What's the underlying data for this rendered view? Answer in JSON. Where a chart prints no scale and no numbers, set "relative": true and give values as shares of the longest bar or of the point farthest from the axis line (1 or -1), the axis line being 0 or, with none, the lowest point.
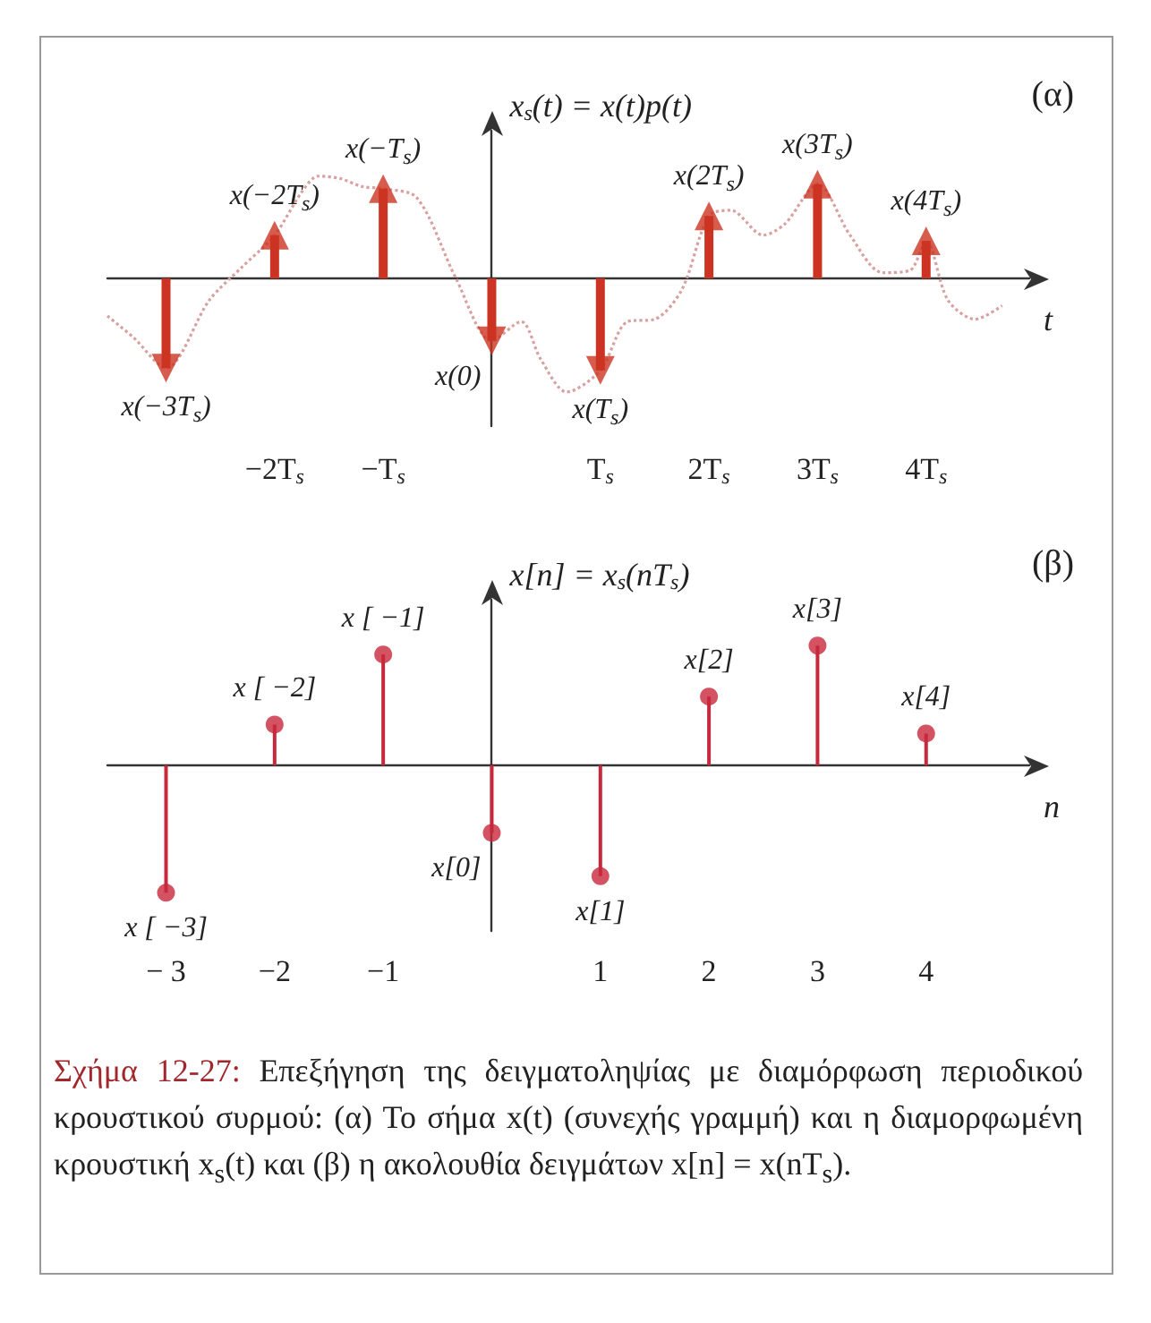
{
  "chart_data": [
    {
      "type": "lollipop",
      "title": "(α)",
      "ylabel": "x$_{s}$(t) = x(t)p(t)",
      "xlabel": "t",
      "relative": true,
      "xlim": [
        -3.54,
        4.95
      ],
      "xticks": [
        {
          "value": -2,
          "label": "−2T$_{s}$"
        },
        {
          "value": -1,
          "label": "−T$_{s}$"
        },
        {
          "value": 1,
          "label": "T$_{s}$"
        },
        {
          "value": 2,
          "label": "2T$_{s}$"
        },
        {
          "value": 3,
          "label": "3T$_{s}$"
        },
        {
          "value": 4,
          "label": "4T$_{s}$"
        }
      ],
      "series": [
        {
          "marker": "triangle",
          "color": "#cc3322",
          "x": [
            -3,
            -2,
            -1,
            0,
            1,
            2,
            3,
            4
          ],
          "values": [
            -0.79,
            0.38,
            0.79,
            -0.55,
            -0.81,
            0.55,
            0.83,
            0.33
          ]
        },
        {
          "type": "line",
          "marker": "none",
          "line_style": "dotted",
          "color": "#d8a0a0",
          "x": [
            -3.54,
            -3.3,
            -3.0,
            -2.6,
            -2.3,
            -2.0,
            -1.75,
            -1.6,
            -1.4,
            -1.2,
            -1.0,
            -0.69,
            -0.33,
            0,
            0.27,
            0.45,
            0.69,
            1.0,
            1.25,
            1.5,
            1.75,
            2.0,
            2.2,
            2.5,
            2.7,
            3.0,
            3.3,
            3.6,
            3.85,
            4.0,
            4.2,
            4.45,
            4.7
          ],
          "values": [
            -0.33,
            -0.52,
            -0.79,
            -0.19,
            0.1,
            0.38,
            0.76,
            0.9,
            0.88,
            0.81,
            0.79,
            0.71,
            0,
            -0.55,
            -0.38,
            -0.71,
            -1,
            -0.81,
            -0.38,
            -0.36,
            -0.1,
            0.55,
            0.6,
            0.38,
            0.48,
            0.83,
            0.38,
            0.05,
            0.07,
            0.33,
            -0.19,
            -0.36,
            -0.24
          ]
        }
      ],
      "annotations": [
        {
          "text": "x(−3T$_{s}$)",
          "x": -3,
          "y": -0.79
        },
        {
          "text": "x(−2T$_{s}$)",
          "x": -2,
          "y": 0.38
        },
        {
          "text": "x(−T$_{s}$)",
          "x": -1,
          "y": 0.79
        },
        {
          "text": "x(0)",
          "x": 0,
          "y": -0.55
        },
        {
          "text": "x(T$_{s}$)",
          "x": 1,
          "y": -0.81
        },
        {
          "text": "x(2T$_{s}$)",
          "x": 2,
          "y": 0.55
        },
        {
          "text": "x(3T$_{s}$)",
          "x": 3,
          "y": 0.83
        },
        {
          "text": "x(4T$_{s}$)",
          "x": 4,
          "y": 0.33
        }
      ]
    },
    {
      "type": "lollipop",
      "title": "(β)",
      "ylabel": "x[n] = x$_{s}$(nT$_{s}$)",
      "xlabel": "n",
      "relative": true,
      "xlim": [
        -3.54,
        4.95
      ],
      "xticks": [
        {
          "value": -3,
          "label": "− 3"
        },
        {
          "value": -2,
          "label": "−2"
        },
        {
          "value": -1,
          "label": "−1"
        },
        1,
        2,
        3,
        4
      ],
      "series": [
        {
          "marker": "circle",
          "color": "#c8283c",
          "x": [
            -3,
            -2,
            -1,
            0,
            1,
            2,
            3,
            4
          ],
          "values": [
            -1,
            0.32,
            0.87,
            -0.53,
            -0.87,
            0.54,
            0.94,
            0.25
          ]
        }
      ],
      "annotations": [
        {
          "text": "x [ −3]",
          "x": -3,
          "y": -1
        },
        {
          "text": "x [ −2]",
          "x": -2,
          "y": 0.32
        },
        {
          "text": "x [ −1]",
          "x": -1,
          "y": 0.87
        },
        {
          "text": "x[0]",
          "x": 0,
          "y": -0.53
        },
        {
          "text": "x[1]",
          "x": 1,
          "y": -0.87
        },
        {
          "text": "x[2]",
          "x": 2,
          "y": 0.54
        },
        {
          "text": "x[3]",
          "x": 3,
          "y": 0.94
        },
        {
          "text": "x[4]",
          "x": 4,
          "y": 0.25
        },
        "Σχήμα 12-27:",
        "Επεξήγηση της δειγματοληψίας με διαμόρφωση περιοδικού κρουστικού συρμού: (α) Το σήμα x(t) (συνεχής γραμμή) και η διαμορφωμένη κρουστική x$_{s}$(t) και (β) η ακολουθία δειγμάτων x[n] = x(nT$_{s}$)."
      ]
    }
  ]
}
